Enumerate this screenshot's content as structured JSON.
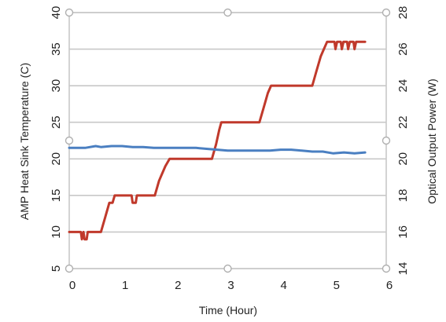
{
  "chart_data": {
    "type": "line",
    "title": "",
    "xlabel": "Time (Hour)",
    "ylabel_left": "AMP Heat Sink Temperature (C)",
    "ylabel_right": "Optical Output Power (W)",
    "xlim": [
      0,
      6
    ],
    "ylim_left": [
      5,
      40
    ],
    "ylim_right": [
      14,
      28
    ],
    "x_ticks": [
      "0",
      "1",
      "2",
      "3",
      "4",
      "5",
      "6"
    ],
    "y_ticks_left": [
      "5",
      "10",
      "15",
      "20",
      "25",
      "30",
      "35",
      "40"
    ],
    "y_ticks_right": [
      "14",
      "16",
      "18",
      "20",
      "22",
      "24",
      "26",
      "28"
    ],
    "grid": "horizontal",
    "legend": "none",
    "series": [
      {
        "axis": "left",
        "color": "#c0392b",
        "points": [
          [
            0.0,
            10
          ],
          [
            0.22,
            10
          ],
          [
            0.24,
            9
          ],
          [
            0.27,
            10
          ],
          [
            0.29,
            9
          ],
          [
            0.33,
            9
          ],
          [
            0.35,
            10
          ],
          [
            0.6,
            10
          ],
          [
            0.68,
            12
          ],
          [
            0.76,
            14
          ],
          [
            0.82,
            14
          ],
          [
            0.86,
            15
          ],
          [
            1.18,
            15
          ],
          [
            1.2,
            14
          ],
          [
            1.26,
            14
          ],
          [
            1.28,
            15
          ],
          [
            1.62,
            15
          ],
          [
            1.7,
            17
          ],
          [
            1.76,
            18
          ],
          [
            1.82,
            19
          ],
          [
            1.9,
            20
          ],
          [
            2.7,
            20
          ],
          [
            2.78,
            22
          ],
          [
            2.84,
            24
          ],
          [
            2.88,
            25
          ],
          [
            3.6,
            25
          ],
          [
            3.68,
            27
          ],
          [
            3.76,
            29
          ],
          [
            3.82,
            30
          ],
          [
            4.6,
            30
          ],
          [
            4.68,
            32
          ],
          [
            4.76,
            34
          ],
          [
            4.82,
            35
          ],
          [
            4.88,
            36
          ],
          [
            5.02,
            36
          ],
          [
            5.04,
            35
          ],
          [
            5.07,
            36
          ],
          [
            5.14,
            36
          ],
          [
            5.16,
            35
          ],
          [
            5.19,
            36
          ],
          [
            5.26,
            36
          ],
          [
            5.28,
            35
          ],
          [
            5.31,
            36
          ],
          [
            5.38,
            36
          ],
          [
            5.4,
            35
          ],
          [
            5.43,
            36
          ],
          [
            5.6,
            36
          ]
        ]
      },
      {
        "axis": "right",
        "color": "#4a7fc1",
        "points": [
          [
            0.0,
            20.6
          ],
          [
            0.3,
            20.6
          ],
          [
            0.5,
            20.7
          ],
          [
            0.6,
            20.65
          ],
          [
            0.8,
            20.7
          ],
          [
            1.0,
            20.7
          ],
          [
            1.2,
            20.65
          ],
          [
            1.4,
            20.65
          ],
          [
            1.6,
            20.6
          ],
          [
            1.8,
            20.6
          ],
          [
            2.0,
            20.6
          ],
          [
            2.2,
            20.6
          ],
          [
            2.4,
            20.6
          ],
          [
            2.6,
            20.55
          ],
          [
            2.8,
            20.5
          ],
          [
            3.0,
            20.45
          ],
          [
            3.2,
            20.45
          ],
          [
            3.4,
            20.45
          ],
          [
            3.6,
            20.45
          ],
          [
            3.8,
            20.45
          ],
          [
            4.0,
            20.5
          ],
          [
            4.2,
            20.5
          ],
          [
            4.4,
            20.45
          ],
          [
            4.6,
            20.4
          ],
          [
            4.8,
            20.4
          ],
          [
            5.0,
            20.3
          ],
          [
            5.2,
            20.35
          ],
          [
            5.4,
            20.3
          ],
          [
            5.6,
            20.35
          ]
        ]
      }
    ]
  }
}
